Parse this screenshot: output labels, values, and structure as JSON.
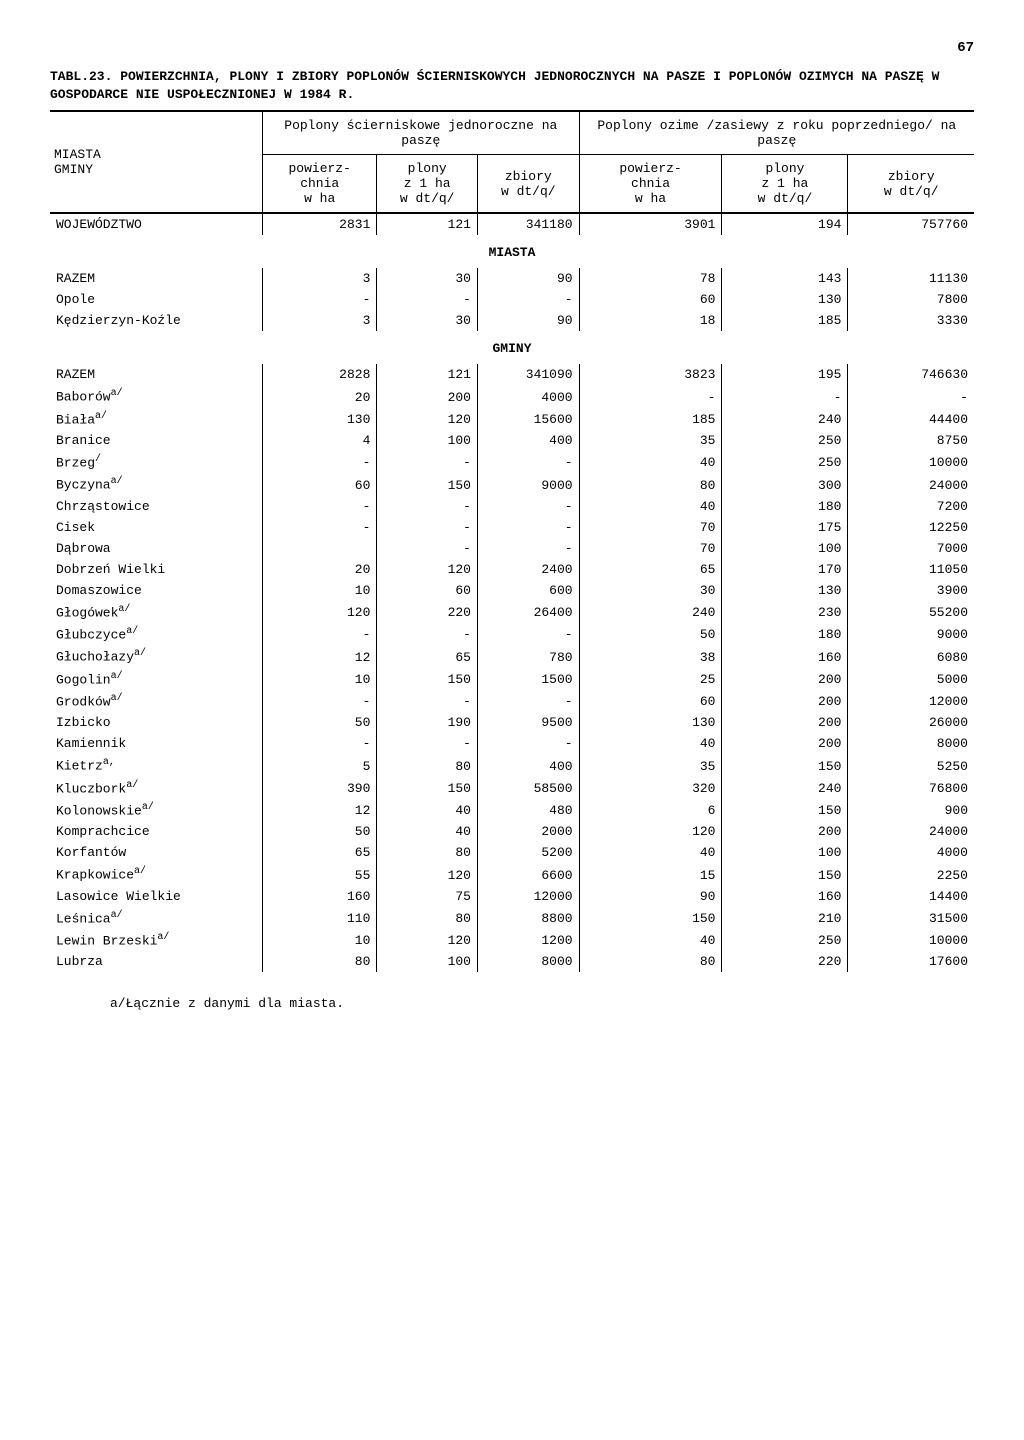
{
  "page_number": "67",
  "table_label": "TABL.23.",
  "table_title": "POWIERZCHNIA, PLONY I ZBIORY POPLONÓW ŚCIERNISKOWYCH JEDNOROCZNYCH NA PASZE I POPLONÓW OZIMYCH NA PASZĘ W GOSPODARCE NIE USPOŁECZNIONEJ W 1984 R.",
  "header": {
    "stub": "MIASTA\nGMINY",
    "group1": "Poplony ścierniskowe jednoroczne na paszę",
    "group2": "Poplony ozime /zasiewy z roku poprzedniego/ na paszę",
    "c1": "powierz-\nchnia\nw ha",
    "c2": "plony\nz 1 ha\nw dt/q/",
    "c3": "zbiory\nw dt/q/",
    "c4": "powierz-\nchnia\nw ha",
    "c5": "plony\nz 1 ha\nw dt/q/",
    "c6": "zbiory\nw dt/q/"
  },
  "section_miasta": "MIASTA",
  "section_gminy": "GMINY",
  "rows_top": [
    {
      "name": "WOJEWÓDZTWO",
      "v": [
        "2831",
        "121",
        "341180",
        "3901",
        "194",
        "757760"
      ]
    }
  ],
  "rows_miasta": [
    {
      "name": "RAZEM",
      "v": [
        "3",
        "30",
        "90",
        "78",
        "143",
        "11130"
      ]
    },
    {
      "name": "Opole",
      "v": [
        "-",
        "-",
        "-",
        "60",
        "130",
        "7800"
      ]
    },
    {
      "name": "Kędzierzyn-Koźle",
      "v": [
        "3",
        "30",
        "90",
        "18",
        "185",
        "3330"
      ]
    }
  ],
  "rows_gminy": [
    {
      "name": "RAZEM",
      "v": [
        "2828",
        "121",
        "341090",
        "3823",
        "195",
        "746630"
      ]
    },
    {
      "name": "Baborów",
      "sup": "a/",
      "v": [
        "20",
        "200",
        "4000",
        "-",
        "-",
        "-"
      ]
    },
    {
      "name": "Biała",
      "sup": "a/",
      "v": [
        "130",
        "120",
        "15600",
        "185",
        "240",
        "44400"
      ]
    },
    {
      "name": "Branice",
      "v": [
        "4",
        "100",
        "400",
        "35",
        "250",
        "8750"
      ]
    },
    {
      "name": "Brzeg",
      "sup": "/",
      "v": [
        "-",
        "-",
        "-",
        "40",
        "250",
        "10000"
      ]
    },
    {
      "name": "Byczyna",
      "sup": "a/",
      "v": [
        "60",
        "150",
        "9000",
        "80",
        "300",
        "24000"
      ]
    },
    {
      "name": "Chrząstowice",
      "v": [
        "-",
        "-",
        "-",
        "40",
        "180",
        "7200"
      ]
    },
    {
      "name": "Cisek",
      "v": [
        "-",
        "-",
        "-",
        "70",
        "175",
        "12250"
      ]
    },
    {
      "name": "Dąbrowa",
      "v": [
        "",
        "-",
        "-",
        "70",
        "100",
        "7000"
      ]
    },
    {
      "name": "Dobrzeń Wielki",
      "v": [
        "20",
        "120",
        "2400",
        "65",
        "170",
        "11050"
      ]
    },
    {
      "name": "Domaszowice",
      "v": [
        "10",
        "60",
        "600",
        "30",
        "130",
        "3900"
      ]
    },
    {
      "name": "Głogówek",
      "sup": "a/",
      "v": [
        "120",
        "220",
        "26400",
        "240",
        "230",
        "55200"
      ]
    },
    {
      "name": "Głubczyce",
      "sup": "a/",
      "v": [
        "-",
        "-",
        "-",
        "50",
        "180",
        "9000"
      ]
    },
    {
      "name": "Głuchołazy",
      "sup": "a/",
      "v": [
        "12",
        "65",
        "780",
        "38",
        "160",
        "6080"
      ]
    },
    {
      "name": "Gogolin",
      "sup": "a/",
      "v": [
        "10",
        "150",
        "1500",
        "25",
        "200",
        "5000"
      ]
    },
    {
      "name": "Grodków",
      "sup": "a/",
      "v": [
        "-",
        "-",
        "-",
        "60",
        "200",
        "12000"
      ]
    },
    {
      "name": "Izbicko",
      "v": [
        "50",
        "190",
        "9500",
        "130",
        "200",
        "26000"
      ]
    },
    {
      "name": "Kamiennik",
      "v": [
        "-",
        "-",
        "-",
        "40",
        "200",
        "8000"
      ]
    },
    {
      "name": "Kietrz",
      "sup": "a,",
      "v": [
        "5",
        "80",
        "400",
        "35",
        "150",
        "5250"
      ]
    },
    {
      "name": "Kluczbork",
      "sup": "a/",
      "v": [
        "390",
        "150",
        "58500",
        "320",
        "240",
        "76800"
      ]
    },
    {
      "name": "Kolonowskie",
      "sup": "a/",
      "v": [
        "12",
        "40",
        "480",
        "6",
        "150",
        "900"
      ]
    },
    {
      "name": "Komprachcice",
      "v": [
        "50",
        "40",
        "2000",
        "120",
        "200",
        "24000"
      ]
    },
    {
      "name": "Korfantów",
      "v": [
        "65",
        "80",
        "5200",
        "40",
        "100",
        "4000"
      ]
    },
    {
      "name": "Krapkowice",
      "sup": "a/",
      "v": [
        "55",
        "120",
        "6600",
        "15",
        "150",
        "2250"
      ]
    },
    {
      "name": "Lasowice Wielkie",
      "v": [
        "160",
        "75",
        "12000",
        "90",
        "160",
        "14400"
      ]
    },
    {
      "name": "Leśnica",
      "sup": "a/",
      "v": [
        "110",
        "80",
        "8800",
        "150",
        "210",
        "31500"
      ]
    },
    {
      "name": "Lewin Brzeski",
      "sup": "a/",
      "v": [
        "10",
        "120",
        "1200",
        "40",
        "250",
        "10000"
      ]
    },
    {
      "name": "Lubrza",
      "v": [
        "80",
        "100",
        "8000",
        "80",
        "220",
        "17600"
      ]
    }
  ],
  "footnote": "a/Łącznie z danymi dla miasta."
}
